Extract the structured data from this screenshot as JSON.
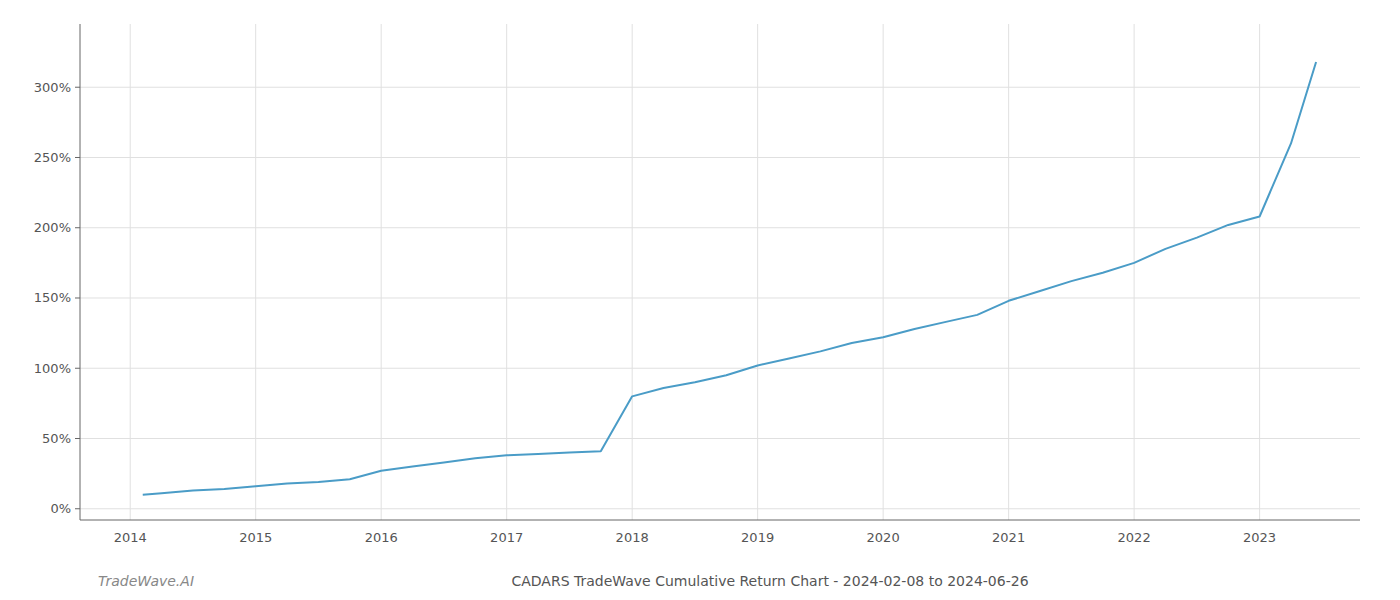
{
  "chart_data": {
    "type": "line",
    "title": "CADARS TradeWave Cumulative Return Chart - 2024-02-08 to 2024-06-26",
    "annotations": [
      "TradeWave.AI"
    ],
    "color": "#4a9cc7",
    "grid": true,
    "x": [
      2014.1,
      2014.25,
      2014.5,
      2014.75,
      2015.0,
      2015.25,
      2015.5,
      2015.75,
      2016.0,
      2016.25,
      2016.5,
      2016.75,
      2017.0,
      2017.25,
      2017.5,
      2017.75,
      2018.0,
      2018.25,
      2018.5,
      2018.75,
      2019.0,
      2019.25,
      2019.5,
      2019.75,
      2020.0,
      2020.25,
      2020.5,
      2020.75,
      2021.0,
      2021.25,
      2021.5,
      2021.75,
      2022.0,
      2022.25,
      2022.5,
      2022.75,
      2023.0,
      2023.25,
      2023.45
    ],
    "values": [
      10,
      11,
      13,
      14,
      16,
      18,
      19,
      21,
      27,
      30,
      33,
      36,
      38,
      39,
      40,
      41,
      80,
      86,
      90,
      95,
      102,
      107,
      112,
      118,
      122,
      128,
      133,
      138,
      148,
      155,
      162,
      168,
      175,
      185,
      193,
      202,
      208,
      260,
      318
    ],
    "xlim": [
      2013.6,
      2023.8
    ],
    "xticks": [
      2014,
      2015,
      2016,
      2017,
      2018,
      2019,
      2020,
      2021,
      2022,
      2023
    ],
    "ylim": [
      -8,
      345
    ],
    "yticks": [
      {
        "value": 0,
        "label": "0%"
      },
      {
        "value": 50,
        "label": "50%"
      },
      {
        "value": 100,
        "label": "100%"
      },
      {
        "value": 150,
        "label": "150%"
      },
      {
        "value": 200,
        "label": "200%"
      },
      {
        "value": 250,
        "label": "250%"
      },
      {
        "value": 300,
        "label": "300%"
      }
    ]
  }
}
